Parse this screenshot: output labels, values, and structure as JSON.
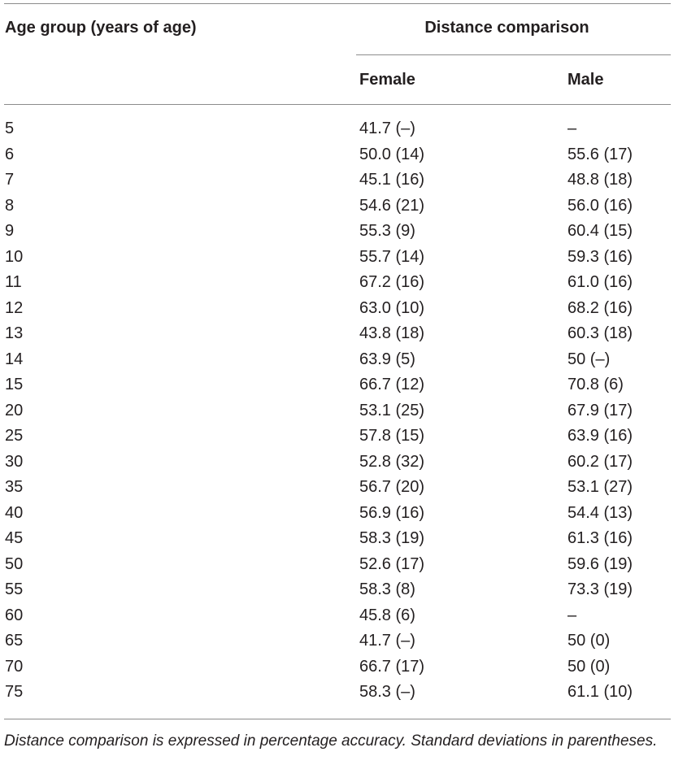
{
  "table": {
    "header": {
      "age_group": "Age group (years of age)",
      "span_title": "Distance comparison",
      "female": "Female",
      "male": "Male"
    },
    "rows": [
      {
        "age": "5",
        "female": "41.7 (–)",
        "male": "–"
      },
      {
        "age": "6",
        "female": "50.0 (14)",
        "male": "55.6 (17)"
      },
      {
        "age": "7",
        "female": "45.1 (16)",
        "male": "48.8 (18)"
      },
      {
        "age": "8",
        "female": "54.6 (21)",
        "male": "56.0 (16)"
      },
      {
        "age": "9",
        "female": "55.3 (9)",
        "male": "60.4 (15)"
      },
      {
        "age": "10",
        "female": "55.7 (14)",
        "male": "59.3 (16)"
      },
      {
        "age": "11",
        "female": "67.2 (16)",
        "male": "61.0 (16)"
      },
      {
        "age": "12",
        "female": "63.0 (10)",
        "male": "68.2 (16)"
      },
      {
        "age": "13",
        "female": "43.8 (18)",
        "male": "60.3 (18)"
      },
      {
        "age": "14",
        "female": "63.9 (5)",
        "male": "50 (–)"
      },
      {
        "age": "15",
        "female": "66.7 (12)",
        "male": "70.8 (6)"
      },
      {
        "age": "20",
        "female": "53.1 (25)",
        "male": "67.9 (17)"
      },
      {
        "age": "25",
        "female": "57.8 (15)",
        "male": "63.9 (16)"
      },
      {
        "age": "30",
        "female": "52.8 (32)",
        "male": "60.2 (17)"
      },
      {
        "age": "35",
        "female": "56.7 (20)",
        "male": "53.1 (27)"
      },
      {
        "age": "40",
        "female": "56.9 (16)",
        "male": "54.4 (13)"
      },
      {
        "age": "45",
        "female": "58.3 (19)",
        "male": "61.3 (16)"
      },
      {
        "age": "50",
        "female": "52.6 (17)",
        "male": "59.6 (19)"
      },
      {
        "age": "55",
        "female": "58.3 (8)",
        "male": "73.3 (19)"
      },
      {
        "age": "60",
        "female": "45.8 (6)",
        "male": "–"
      },
      {
        "age": "65",
        "female": "41.7 (–)",
        "male": "50 (0)"
      },
      {
        "age": "70",
        "female": "66.7 (17)",
        "male": "50 (0)"
      },
      {
        "age": "75",
        "female": "58.3 (–)",
        "male": "61.1 (10)"
      }
    ],
    "footnote": "Distance comparison is expressed in percentage accuracy. Standard deviations in parentheses."
  }
}
